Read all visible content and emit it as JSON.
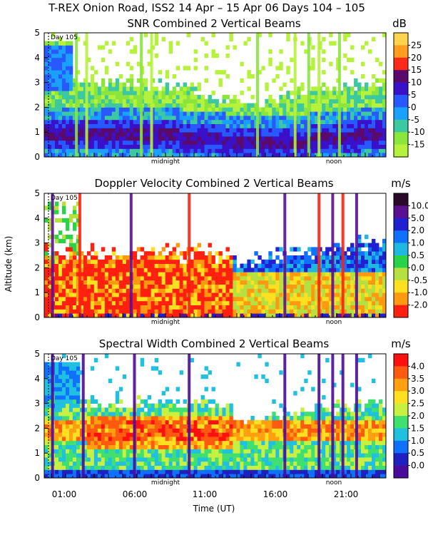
{
  "figure_title": "T-REX Onion Road, ISS2  14 Apr – 15 Apr 06 Days 104 – 105",
  "chart_data": [
    {
      "type": "heatmap",
      "title": "SNR Combined 2 Vertical Beams",
      "unit": "dB",
      "day_marker": "Day 105",
      "midnight_label": "midnight",
      "noon_label": "noon",
      "ylim": [
        0,
        5
      ],
      "yticks": [
        "0",
        "1",
        "2",
        "3",
        "4",
        "5"
      ],
      "colorbar": {
        "labels": [
          "25",
          "20",
          "15",
          "10",
          "5",
          "0",
          "-5",
          "-10",
          "-15"
        ],
        "colors": [
          "#ffd34d",
          "#ff9d1e",
          "#ff2a1a",
          "#5a0a6a",
          "#3a10c8",
          "#2858ff",
          "#1aa0ff",
          "#3cc8a0",
          "#8ae63c",
          "#b6f23c"
        ]
      }
    },
    {
      "type": "heatmap",
      "title": "Doppler Velocity Combined 2 Vertical Beams",
      "unit": "m/s",
      "day_marker": "Day 105",
      "midnight_label": "midnight",
      "noon_label": "noon",
      "ylim": [
        0,
        5
      ],
      "yticks": [
        "0",
        "1",
        "2",
        "3",
        "4",
        "5"
      ],
      "ylabel": "Altitude (km)",
      "colorbar": {
        "labels": [
          "10.0",
          "5.0",
          "2.0",
          "1.0",
          "0.5",
          "0.0",
          "-0.5",
          "-1.0",
          "-2.0"
        ],
        "colors": [
          "#2a0a2a",
          "#5a1090",
          "#2020d0",
          "#1070ff",
          "#1eb8e0",
          "#2ad24a",
          "#b6e040",
          "#ffe020",
          "#ff9a10",
          "#ff2010"
        ]
      }
    },
    {
      "type": "heatmap",
      "title": "Spectral Width Combined 2 Vertical Beams",
      "unit": "m/s",
      "day_marker": "Day 105",
      "midnight_label": "midnight",
      "noon_label": "noon",
      "ylim": [
        0,
        5
      ],
      "yticks": [
        "0",
        "1",
        "2",
        "3",
        "4",
        "5"
      ],
      "xticks": [
        "01:00",
        "06:00",
        "11:00",
        "16:00",
        "21:00"
      ],
      "xlabel": "Time (UT)",
      "colorbar": {
        "labels": [
          "4.0",
          "3.5",
          "3.0",
          "2.5",
          "2.0",
          "1.5",
          "1.0",
          "0.5",
          "0.0"
        ],
        "colors": [
          "#ff1010",
          "#ff5a10",
          "#ffa010",
          "#ffe020",
          "#c8f040",
          "#40e070",
          "#20c0e0",
          "#1070ff",
          "#2020c0",
          "#4a0a9a"
        ]
      }
    }
  ]
}
